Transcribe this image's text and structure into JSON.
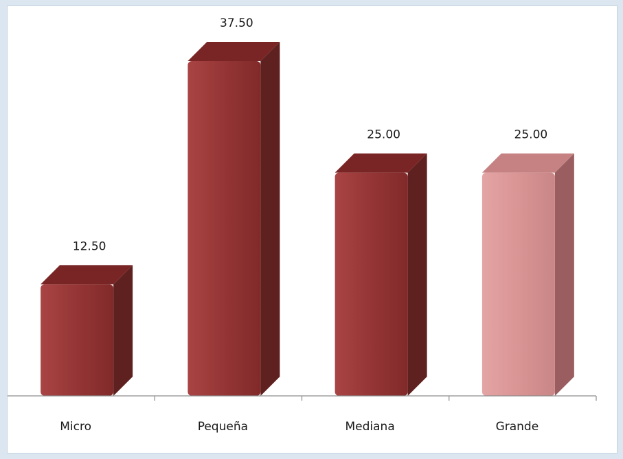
{
  "chart_data": {
    "type": "bar",
    "categories": [
      "Micro",
      "Pequeña",
      "Mediana",
      "Grande"
    ],
    "values": [
      12.5,
      37.5,
      25.0,
      25.0
    ],
    "value_labels": [
      "12.50",
      "37.50",
      "25.00",
      "25.00"
    ],
    "title": "",
    "xlabel": "",
    "ylabel": "",
    "ylim": [
      0,
      37.5
    ],
    "grid": false,
    "legend": "none",
    "bar_style": "3d",
    "colors": {
      "bar_front": "#953535",
      "bar_top": "#7a2525",
      "bar_side": "#5f2020",
      "highlight_front": "#d99494",
      "highlight_top": "#c68282",
      "highlight_side": "#9a5e60",
      "axis": "#8c8c8c"
    },
    "highlight_index": 3
  }
}
